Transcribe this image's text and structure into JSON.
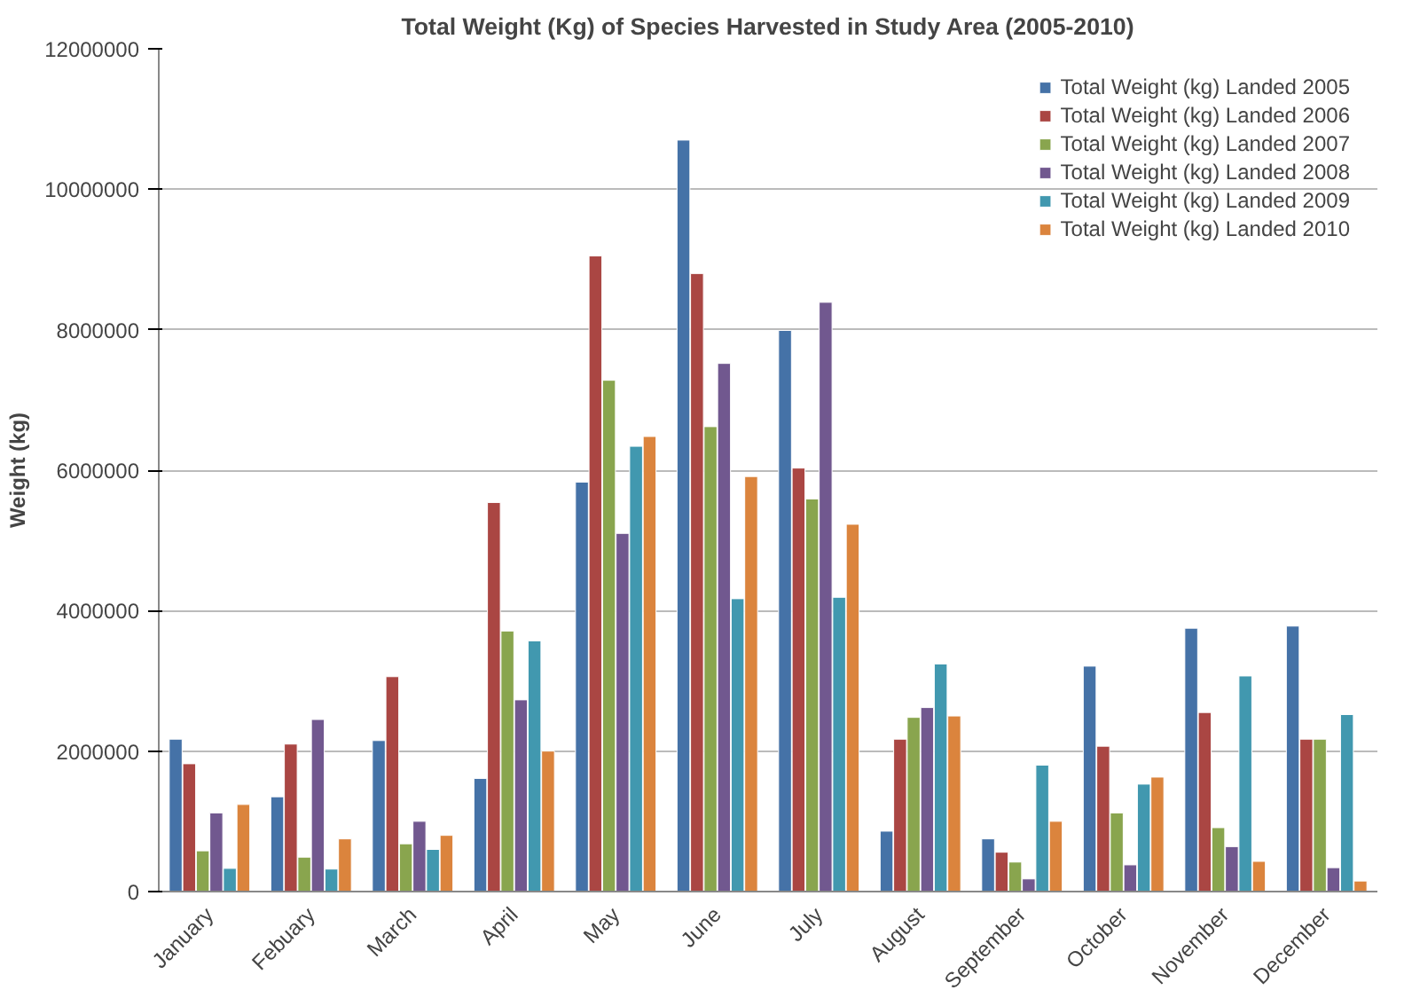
{
  "chart_data": {
    "type": "bar",
    "title": "Total Weight (Kg) of Species Harvested in Study Area (2005-2010)",
    "ylabel": "Weight (kg)",
    "categories": [
      "January",
      "Febuary",
      "March",
      "April",
      "May",
      "June",
      "July",
      "August",
      "September",
      "October",
      "November",
      "December"
    ],
    "series": [
      {
        "name": "Total Weight (kg) Landed 2005",
        "color": "#4572a7",
        "values": [
          2170000,
          1350000,
          2150000,
          1610000,
          5830000,
          10700000,
          7990000,
          860000,
          750000,
          3210000,
          3750000,
          3780000
        ]
      },
      {
        "name": "Total Weight (kg) Landed 2006",
        "color": "#aa4643",
        "values": [
          1820000,
          2100000,
          3060000,
          5540000,
          9050000,
          8800000,
          6030000,
          2170000,
          560000,
          2070000,
          2550000,
          2170000
        ]
      },
      {
        "name": "Total Weight (kg) Landed 2007",
        "color": "#89a54e",
        "values": [
          580000,
          490000,
          680000,
          3710000,
          7280000,
          6620000,
          5590000,
          2480000,
          420000,
          1120000,
          910000,
          2170000
        ]
      },
      {
        "name": "Total Weight (kg) Landed 2008",
        "color": "#71588f",
        "values": [
          1120000,
          2450000,
          1000000,
          2730000,
          5100000,
          7520000,
          8390000,
          2620000,
          180000,
          380000,
          640000,
          340000
        ]
      },
      {
        "name": "Total Weight (kg) Landed 2009",
        "color": "#4198af",
        "values": [
          330000,
          320000,
          600000,
          3570000,
          6340000,
          4170000,
          4190000,
          3240000,
          1800000,
          1530000,
          3070000,
          2520000
        ]
      },
      {
        "name": "Total Weight (kg) Landed 2010",
        "color": "#db843d",
        "values": [
          1240000,
          750000,
          800000,
          2000000,
          6480000,
          5910000,
          5230000,
          2500000,
          1000000,
          1630000,
          430000,
          150000
        ]
      }
    ],
    "ylim": [
      0,
      12000000
    ],
    "yticks": [
      0,
      2000000,
      4000000,
      6000000,
      8000000,
      10000000,
      12000000
    ],
    "grid": "y",
    "legend": "top right"
  }
}
